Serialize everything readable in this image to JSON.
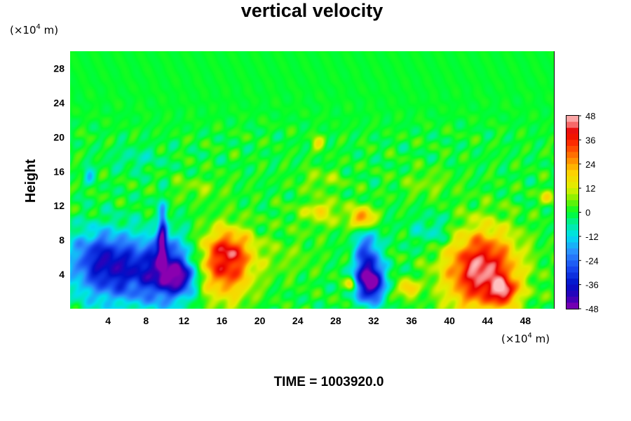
{
  "chart_data": {
    "type": "heatmap",
    "title": "vertical velocity",
    "ylabel": "Height",
    "xunit": {
      "prefix": "(×10",
      "exp": "4",
      "suffix": " m)"
    },
    "yunit": {
      "prefix": "(×10",
      "exp": "4",
      "suffix": " m)"
    },
    "xlim": [
      0,
      51
    ],
    "ylim": [
      0,
      30
    ],
    "xticks": [
      4,
      8,
      12,
      16,
      20,
      24,
      28,
      32,
      36,
      40,
      44,
      48
    ],
    "yticks": [
      4,
      8,
      12,
      16,
      20,
      24,
      28
    ],
    "colorbar": {
      "min": -48,
      "max": 48,
      "ticks": [
        48,
        36,
        24,
        12,
        0,
        -12,
        -24,
        -36,
        -48
      ],
      "stops": [
        {
          "v": -48,
          "c": "#8a00b0"
        },
        {
          "v": -42,
          "c": "#3000b8"
        },
        {
          "v": -36,
          "c": "#0010c8"
        },
        {
          "v": -28,
          "c": "#1848f0"
        },
        {
          "v": -20,
          "c": "#2c8cff"
        },
        {
          "v": -12,
          "c": "#00e0f0"
        },
        {
          "v": -5,
          "c": "#00f090"
        },
        {
          "v": 0,
          "c": "#00ff28"
        },
        {
          "v": 6,
          "c": "#78f000"
        },
        {
          "v": 12,
          "c": "#e0f000"
        },
        {
          "v": 20,
          "c": "#ffd000"
        },
        {
          "v": 26,
          "c": "#ff8c00"
        },
        {
          "v": 34,
          "c": "#ff3000"
        },
        {
          "v": 40,
          "c": "#e80000"
        },
        {
          "v": 44,
          "c": "#f87878"
        },
        {
          "v": 48,
          "c": "#ffc0c0"
        }
      ]
    },
    "features": [
      {
        "x": 5.0,
        "y": 4.5,
        "sx": 3.3,
        "sy": 2.8,
        "amp": -34
      },
      {
        "x": 2.8,
        "y": 6.5,
        "sx": 2.0,
        "sy": 2.0,
        "amp": -12
      },
      {
        "x": 10.4,
        "y": 4.3,
        "sx": 1.9,
        "sy": 2.6,
        "amp": -34
      },
      {
        "x": 11.8,
        "y": 3.6,
        "sx": 0.9,
        "sy": 1.1,
        "amp": -22
      },
      {
        "x": 9.7,
        "y": 8.5,
        "sx": 0.35,
        "sy": 2.5,
        "amp": -36
      },
      {
        "x": 9.4,
        "y": 10.2,
        "sx": 0.3,
        "sy": 1.0,
        "amp": 10
      },
      {
        "x": 16.4,
        "y": 5.0,
        "sx": 2.0,
        "sy": 2.8,
        "amp": 36
      },
      {
        "x": 16.8,
        "y": 7.2,
        "sx": 1.6,
        "sy": 1.4,
        "amp": 12
      },
      {
        "x": 31.6,
        "y": 3.0,
        "sx": 1.1,
        "sy": 1.6,
        "amp": -48
      },
      {
        "x": 31.3,
        "y": 6.5,
        "sx": 0.9,
        "sy": 2.2,
        "amp": -26
      },
      {
        "x": 31.0,
        "y": 10.5,
        "sx": 0.8,
        "sy": 0.9,
        "amp": 30
      },
      {
        "x": 29.6,
        "y": 2.8,
        "sx": 0.4,
        "sy": 0.6,
        "amp": 26
      },
      {
        "x": 35.5,
        "y": 2.3,
        "sx": 0.8,
        "sy": 0.7,
        "amp": 22
      },
      {
        "x": 43.4,
        "y": 4.4,
        "sx": 2.7,
        "sy": 3.4,
        "amp": 46
      },
      {
        "x": 45.8,
        "y": 2.0,
        "sx": 0.9,
        "sy": 1.0,
        "amp": 26
      },
      {
        "x": 27.0,
        "y": 11.0,
        "sx": 2.6,
        "sy": 1.2,
        "amp": 9
      },
      {
        "x": 26.2,
        "y": 11.6,
        "sx": 0.5,
        "sy": 0.5,
        "amp": 16
      },
      {
        "x": 26.5,
        "y": 15.0,
        "sx": 1.8,
        "sy": 1.0,
        "amp": 7
      },
      {
        "x": 26.2,
        "y": 19.3,
        "sx": 0.5,
        "sy": 0.6,
        "amp": 14
      },
      {
        "x": 2.0,
        "y": 15.6,
        "sx": 0.4,
        "sy": 0.7,
        "amp": -14
      },
      {
        "x": 38.5,
        "y": 9.0,
        "sx": 1.8,
        "sy": 1.4,
        "amp": -10
      },
      {
        "x": 37.5,
        "y": 14.5,
        "sx": 2.0,
        "sy": 1.2,
        "amp": 6
      },
      {
        "x": 50.3,
        "y": 13.0,
        "sx": 0.5,
        "sy": 0.7,
        "amp": 15
      },
      {
        "x": 22.5,
        "y": 6.0,
        "sx": 2.5,
        "sy": 1.8,
        "amp": 5
      },
      {
        "x": 13.5,
        "y": 14.0,
        "sx": 2.2,
        "sy": 1.0,
        "amp": 6
      },
      {
        "x": 7.0,
        "y": 17.5,
        "sx": 2.0,
        "sy": 1.0,
        "amp": -6
      }
    ]
  },
  "time_label": "TIME = 1003920.0"
}
